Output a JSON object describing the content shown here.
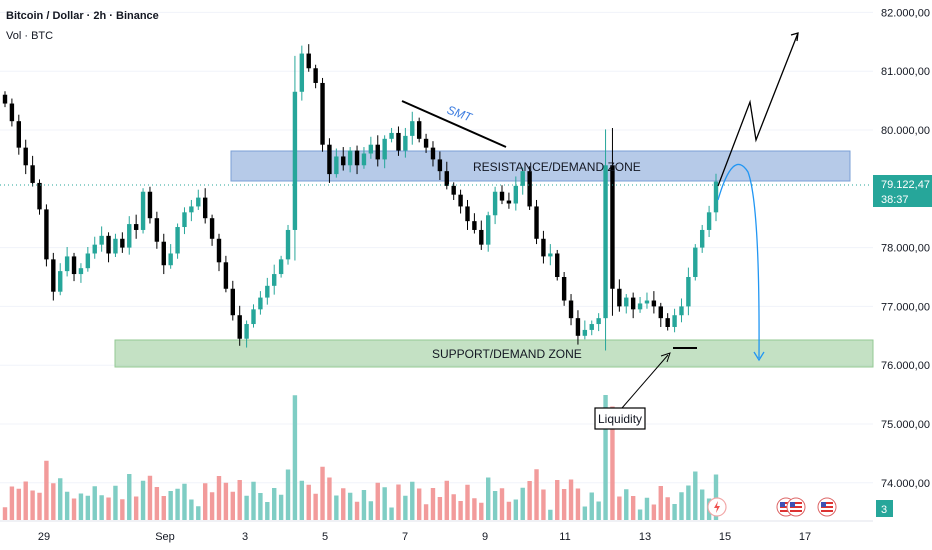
{
  "header": {
    "title": "Bitcoin / Dollar · 2h · Binance",
    "volume_label": "Vol · BTC"
  },
  "price_axis": {
    "labels": [
      "82.000,00",
      "81.000,00",
      "80.000,00",
      "78.000,00",
      "77.000,00",
      "76.000,00",
      "75.000,00",
      "74.000,00"
    ],
    "current_price": "79.122,47",
    "countdown": "38:37",
    "tag_color": "#26a69a",
    "corner_badge": "3"
  },
  "time_axis": {
    "labels": [
      "29",
      "Sep",
      "3",
      "5",
      "7",
      "9",
      "11",
      "13",
      "15",
      "17"
    ]
  },
  "annotations": {
    "resistance_zone": "RESISTANCE/DEMAND ZONE",
    "support_zone": "SUPPORT/DEMAND ZONE",
    "smt": "SMT",
    "liquidity": "Liquidity"
  },
  "event_icons": [
    "flash-icon",
    "us-flag-icon",
    "us-flag-icon",
    "us-flag-icon"
  ],
  "colors": {
    "up": "#26a69a",
    "down": "#000000",
    "resistance_zone": "#7a9fd6",
    "support_zone": "#93c993",
    "vol_up": "#7fcdc4",
    "vol_down": "#f29b9b",
    "projection": "#2196f3"
  },
  "chart_data": {
    "type": "candlestick",
    "symbol": "BTCUSD",
    "interval": "2h",
    "exchange": "Binance",
    "ylim": [
      73400,
      82200
    ],
    "price_ticks": [
      82000,
      81000,
      80000,
      78000,
      77000,
      76000,
      75000,
      74000
    ],
    "last_price": 79122.47,
    "resistance_zone": [
      79050,
      79550
    ],
    "support_zone": [
      76050,
      76500
    ],
    "close": [
      80450,
      80150,
      79700,
      79400,
      79100,
      78650,
      77800,
      77250,
      77600,
      77850,
      77550,
      77650,
      77900,
      78050,
      78200,
      77900,
      78150,
      78000,
      78400,
      78300,
      78950,
      78500,
      78100,
      77700,
      77900,
      78350,
      78600,
      78700,
      78850,
      78500,
      78150,
      77750,
      77300,
      76850,
      76450,
      76700,
      76950,
      77150,
      77350,
      77550,
      77800,
      78300,
      80650,
      81300,
      81050,
      80800,
      79750,
      79250,
      79550,
      79400,
      79650,
      79400,
      79600,
      79750,
      79500,
      79850,
      79950,
      79650,
      79900,
      80150,
      79850,
      79700,
      79500,
      79300,
      79050,
      78900,
      78700,
      78450,
      78300,
      78050,
      78550,
      78950,
      78800,
      78750,
      79050,
      79300,
      78700,
      78150,
      77850,
      77900,
      77500,
      77100,
      76800,
      76500,
      76600,
      76700,
      76800,
      79400,
      77300,
      77000,
      77150,
      76950,
      77050,
      77100,
      77000,
      76800,
      76650,
      76850,
      77000,
      77500,
      78000,
      78300,
      78600,
      79122
    ]
  }
}
